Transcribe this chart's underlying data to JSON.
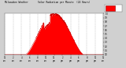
{
  "bg_color": "#d0d0d0",
  "plot_bg_color": "#ffffff",
  "fill_color": "#ff0000",
  "line_color": "#cc0000",
  "grid_color": "#999999",
  "text_color": "#000000",
  "legend_color": "#ff0000",
  "legend_border": "#880000",
  "title_line1": "Milwaukee Weather",
  "title_line2": "Solar Radiation per Minute",
  "title_line3": "(24 Hours)",
  "y_labels": [
    "0",
    "0.1",
    "0.2",
    "0.3",
    "0.4",
    "0.5",
    "0.6",
    "0.7",
    "0.8",
    "0.9",
    "1"
  ],
  "x_label_step_h": 2,
  "xlim": [
    0,
    1440
  ],
  "ylim": [
    0,
    1.0
  ],
  "peak_minute": 720,
  "rise_minute": 300,
  "set_minute": 1150
}
